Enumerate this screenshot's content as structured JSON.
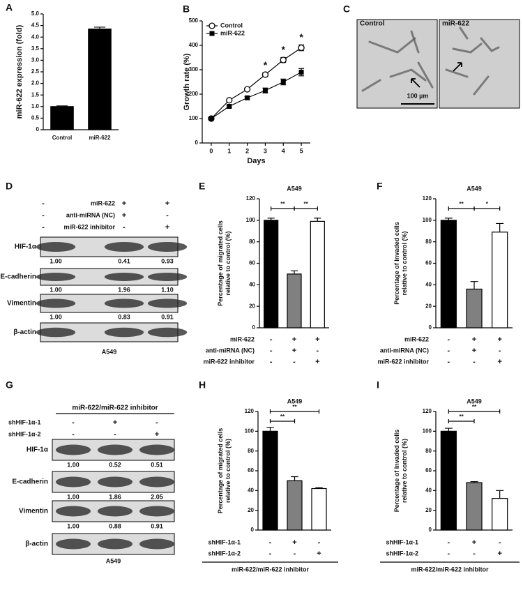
{
  "chart_data": [
    {
      "type": "bar",
      "label": "A",
      "ylabel": "miR-622 expression (fold)",
      "categories": [
        "Control",
        "miR-622"
      ],
      "values": [
        1.0,
        4.35
      ],
      "errors": [
        0.03,
        0.08
      ],
      "colors": [
        "#000000",
        "#000000"
      ],
      "ylim": [
        0,
        5
      ],
      "yticks": [
        0,
        0.5,
        {
          "value": 1,
          "label": "1.0"
        },
        1.5,
        {
          "value": 2,
          "label": "2.0"
        },
        2.5,
        {
          "value": 3,
          "label": "3.0"
        },
        3.5,
        {
          "value": 4,
          "label": "4.0"
        },
        4.5,
        {
          "value": 5,
          "label": "5.0"
        }
      ]
    },
    {
      "type": "line",
      "label": "B",
      "xlabel": "Days",
      "ylabel": "Growth rate (%)",
      "x": [
        0,
        1,
        2,
        3,
        4,
        5
      ],
      "series": [
        {
          "name": "Control",
          "marker": "open",
          "values": [
            100,
            175,
            220,
            280,
            340,
            390
          ],
          "errors": [
            5,
            5,
            5,
            8,
            10,
            12
          ]
        },
        {
          "name": "miR-622",
          "marker": "filled",
          "values": [
            100,
            150,
            185,
            215,
            250,
            290
          ],
          "errors": [
            5,
            5,
            5,
            10,
            12,
            15
          ]
        }
      ],
      "annotations": [
        {
          "text": "*",
          "x": 3
        },
        {
          "text": "*",
          "x": 4
        },
        {
          "text": "*",
          "x": 5
        }
      ],
      "xlim": [
        -0.5,
        5.5
      ],
      "xticks": [
        0,
        1,
        2,
        3,
        4,
        5
      ],
      "ylim": [
        0,
        500
      ],
      "yticks": [
        0,
        100,
        200,
        300,
        400,
        500
      ]
    },
    {
      "type": "bar",
      "label": "E",
      "title": "A549",
      "ylabel": [
        "Percentage of migrated cells",
        "relative to control (%)"
      ],
      "values": [
        100,
        50,
        99
      ],
      "errors": [
        2,
        3,
        3
      ],
      "colors": [
        "#000000",
        "#808080",
        "#ffffff"
      ],
      "ylim": [
        0,
        120
      ],
      "yticks": [
        0,
        20,
        40,
        60,
        80,
        100,
        120
      ],
      "brackets": [
        {
          "text": "**",
          "between": [
            0,
            1
          ]
        },
        {
          "text": "**",
          "between": [
            1,
            2
          ]
        }
      ],
      "conditions": [
        {
          "name": "miR-622",
          "signs": [
            "-",
            "+",
            "+"
          ]
        },
        {
          "name": "anti-miRNA (NC)",
          "signs": [
            "-",
            "+",
            "-"
          ]
        },
        {
          "name": "miR-622 inhibitor",
          "signs": [
            "-",
            "-",
            "+"
          ]
        }
      ]
    },
    {
      "type": "bar",
      "label": "F",
      "title": "A549",
      "ylabel": [
        "Percentage of Invaded cells",
        "relative to control (%)"
      ],
      "values": [
        100,
        36,
        89
      ],
      "errors": [
        2,
        7,
        8
      ],
      "colors": [
        "#000000",
        "#808080",
        "#ffffff"
      ],
      "ylim": [
        0,
        120
      ],
      "yticks": [
        0,
        20,
        40,
        60,
        80,
        100,
        120
      ],
      "brackets": [
        {
          "text": "**",
          "between": [
            0,
            1
          ]
        },
        {
          "text": "*",
          "between": [
            1,
            2
          ]
        }
      ],
      "conditions": [
        {
          "name": "miR-622",
          "signs": [
            "-",
            "+",
            "+"
          ]
        },
        {
          "name": "anti-miRNA (NC)",
          "signs": [
            "-",
            "+",
            "-"
          ]
        },
        {
          "name": "miR-622 inhibitor",
          "signs": [
            "-",
            "-",
            "+"
          ]
        }
      ]
    },
    {
      "type": "bar",
      "label": "H",
      "title": "A549",
      "ylabel": [
        "Percentage of migrated cells",
        "relative to control (%)"
      ],
      "values": [
        100,
        50,
        42
      ],
      "errors": [
        4,
        4,
        1
      ],
      "colors": [
        "#000000",
        "#808080",
        "#ffffff"
      ],
      "ylim": [
        0,
        120
      ],
      "yticks": [
        0,
        20,
        40,
        60,
        80,
        100,
        120
      ],
      "brackets": [
        {
          "text": "**",
          "between": [
            0,
            1
          ]
        },
        {
          "text": "**",
          "between": [
            0,
            2
          ]
        }
      ],
      "conditions": [
        {
          "name": "shHIF-1α-1",
          "signs": [
            "-",
            "+",
            "-"
          ]
        },
        {
          "name": "shHIF-1α-2",
          "signs": [
            "-",
            "-",
            "+"
          ]
        }
      ],
      "group_label": "miR-622/miR-622 inhibitor"
    },
    {
      "type": "bar",
      "label": "I",
      "title": "A549",
      "ylabel": [
        "Percentage of Invaded cells",
        "relative to control (%)"
      ],
      "values": [
        100,
        48,
        32
      ],
      "errors": [
        3,
        1,
        8
      ],
      "colors": [
        "#000000",
        "#808080",
        "#ffffff"
      ],
      "ylim": [
        0,
        120
      ],
      "yticks": [
        0,
        20,
        40,
        60,
        80,
        100,
        120
      ],
      "brackets": [
        {
          "text": "**",
          "between": [
            0,
            1
          ]
        },
        {
          "text": "**",
          "between": [
            0,
            2
          ]
        }
      ],
      "conditions": [
        {
          "name": "shHIF-1α-1",
          "signs": [
            "-",
            "+",
            "-"
          ]
        },
        {
          "name": "shHIF-1α-2",
          "signs": [
            "-",
            "-",
            "+"
          ]
        }
      ],
      "group_label": "miR-622/miR-622 inhibitor"
    }
  ],
  "micrographs": {
    "label": "C",
    "images": [
      {
        "title": "Control"
      },
      {
        "title": "miR-622"
      }
    ],
    "scale_bar": "100 µm"
  },
  "blots": [
    {
      "label": "D",
      "conditions": [
        {
          "name": "miR-622",
          "signs": [
            "-",
            "+",
            "+"
          ]
        },
        {
          "name": "anti-miRNA (NC)",
          "signs": [
            "-",
            "+",
            "-"
          ]
        },
        {
          "name": "miR-622 inhibitor",
          "signs": [
            "-",
            "-",
            "+"
          ]
        }
      ],
      "rows": [
        {
          "name": "HIF-1α",
          "values": [
            "1.00",
            "0.41",
            "0.93"
          ]
        },
        {
          "name": "E-cadherin",
          "values": [
            "1.00",
            "1.96",
            "1.10"
          ]
        },
        {
          "name": "Vimentin",
          "values": [
            "1.00",
            "0.83",
            "0.91"
          ]
        },
        {
          "name": "β-actin"
        }
      ],
      "caption": "A549"
    },
    {
      "label": "G",
      "header": "miR-622/miR-622 inhibitor",
      "conditions": [
        {
          "name": "shHIF-1α-1",
          "signs": [
            "-",
            "+",
            "-"
          ]
        },
        {
          "name": "shHIF-1α-2",
          "signs": [
            "-",
            "-",
            "+"
          ]
        }
      ],
      "rows": [
        {
          "name": "HIF-1α",
          "values": [
            "1.00",
            "0.52",
            "0.51"
          ]
        },
        {
          "name": "E-cadherin",
          "values": [
            "1.00",
            "1.86",
            "2.05"
          ]
        },
        {
          "name": "Vimentin",
          "values": [
            "1.00",
            "0.88",
            "0.91"
          ]
        },
        {
          "name": "β-actin"
        }
      ],
      "caption": "A549"
    }
  ]
}
